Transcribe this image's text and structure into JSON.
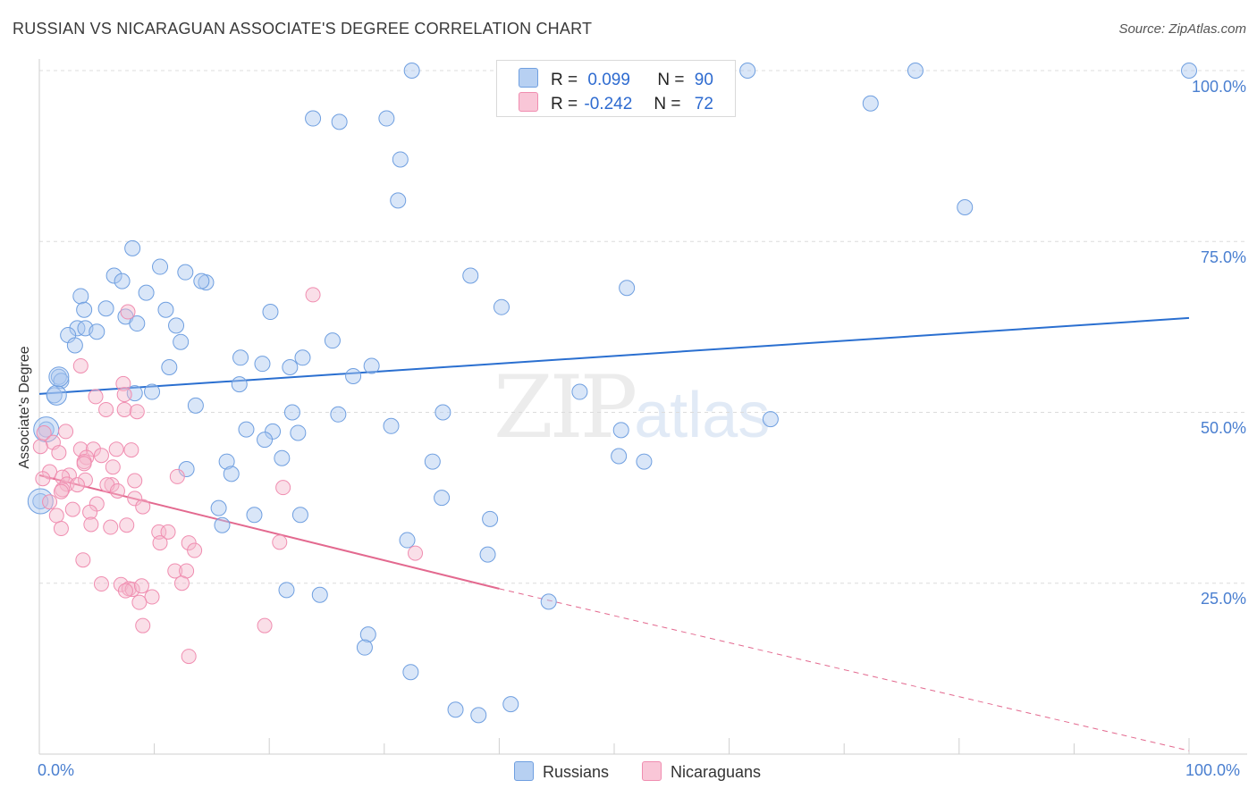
{
  "header": {
    "title": "RUSSIAN VS NICARAGUAN ASSOCIATE'S DEGREE CORRELATION CHART",
    "source": "Source: ZipAtlas.com"
  },
  "legend": {
    "russians": {
      "r_label": "R =",
      "r_value": "0.099",
      "n_label": "N =",
      "n_value": "90"
    },
    "nicaraguans": {
      "r_label": "R =",
      "r_value": "-0.242",
      "n_label": "N =",
      "n_value": "72"
    },
    "bottom": {
      "russians": "Russians",
      "nicaraguans": "Nicaraguans"
    }
  },
  "watermark": {
    "zip": "ZIP",
    "atlas": "atlas"
  },
  "chart_data": {
    "type": "scatter",
    "title": "RUSSIAN VS NICARAGUAN ASSOCIATE'S DEGREE CORRELATION CHART",
    "xlabel": "",
    "ylabel": "Associate's Degree",
    "xlim": [
      0,
      100
    ],
    "ylim": [
      0,
      100
    ],
    "x_tick_labels": [
      "0.0%",
      "100.0%"
    ],
    "y_tick_labels": [
      "100.0%",
      "75.0%",
      "50.0%",
      "25.0%"
    ],
    "y_ticks": [
      100,
      75,
      50,
      25
    ],
    "grid": true,
    "colors": {
      "russians": "#6f9fe0",
      "nicaraguans": "#f08db0",
      "russians_line": "#2a6fd0",
      "nicaraguans_line": "#e3698f"
    },
    "series": [
      {
        "name": "Russians",
        "trend": {
          "x": [
            0,
            100
          ],
          "y": [
            52.7,
            63.8
          ],
          "dashed_to": null
        },
        "points": [
          [
            32.4,
            100
          ],
          [
            61.6,
            100
          ],
          [
            76.2,
            100
          ],
          [
            100,
            100
          ],
          [
            59.3,
            100
          ],
          [
            23.8,
            93
          ],
          [
            26.1,
            92.5
          ],
          [
            30.2,
            93
          ],
          [
            72.3,
            95.2
          ],
          [
            31.4,
            87
          ],
          [
            31.2,
            81
          ],
          [
            80.5,
            80
          ],
          [
            8.1,
            74
          ],
          [
            10.5,
            71.3
          ],
          [
            6.5,
            70
          ],
          [
            7.2,
            69.2
          ],
          [
            12.7,
            70.5
          ],
          [
            14.5,
            69
          ],
          [
            14.1,
            69.2
          ],
          [
            3.6,
            67
          ],
          [
            9.3,
            67.5
          ],
          [
            37.5,
            70
          ],
          [
            51.1,
            68.2
          ],
          [
            5.8,
            65.2
          ],
          [
            3.9,
            65
          ],
          [
            11.0,
            65
          ],
          [
            20.1,
            64.7
          ],
          [
            40.2,
            65.4
          ],
          [
            7.5,
            64
          ],
          [
            8.5,
            63
          ],
          [
            11.9,
            62.7
          ],
          [
            3.3,
            62.3
          ],
          [
            4.0,
            62.3
          ],
          [
            5.0,
            61.8
          ],
          [
            2.5,
            61.3
          ],
          [
            12.3,
            60.3
          ],
          [
            25.5,
            60.5
          ],
          [
            3.1,
            59.8
          ],
          [
            17.5,
            58
          ],
          [
            22.9,
            58
          ],
          [
            19.4,
            57.1
          ],
          [
            11.3,
            56.6
          ],
          [
            21.8,
            56.6
          ],
          [
            28.9,
            56.8
          ],
          [
            1.7,
            55.2
          ],
          [
            1.9,
            54.6
          ],
          [
            17.4,
            54.1
          ],
          [
            27.3,
            55.3
          ],
          [
            1.3,
            52.5
          ],
          [
            9.8,
            53
          ],
          [
            47.0,
            53
          ],
          [
            13.6,
            51
          ],
          [
            8.3,
            52.8
          ],
          [
            35.1,
            50
          ],
          [
            22.0,
            50
          ],
          [
            26.0,
            49.7
          ],
          [
            63.6,
            49
          ],
          [
            30.6,
            48
          ],
          [
            0.6,
            47.5
          ],
          [
            18.0,
            47.5
          ],
          [
            20.3,
            47.2
          ],
          [
            50.6,
            47.4
          ],
          [
            22.5,
            47
          ],
          [
            19.6,
            46
          ],
          [
            21.1,
            43.3
          ],
          [
            16.3,
            42.8
          ],
          [
            34.2,
            42.8
          ],
          [
            50.4,
            43.6
          ],
          [
            52.6,
            42.8
          ],
          [
            12.8,
            41.7
          ],
          [
            16.7,
            41
          ],
          [
            35.0,
            37.5
          ],
          [
            15.6,
            36
          ],
          [
            0.1,
            37
          ],
          [
            18.7,
            35
          ],
          [
            22.7,
            35
          ],
          [
            39.2,
            34.4
          ],
          [
            15.9,
            33.5
          ],
          [
            32.0,
            31.3
          ],
          [
            39.0,
            29.2
          ],
          [
            21.5,
            24
          ],
          [
            24.4,
            23.3
          ],
          [
            44.3,
            22.3
          ],
          [
            28.6,
            17.5
          ],
          [
            28.3,
            15.6
          ],
          [
            32.3,
            12
          ],
          [
            36.2,
            6.5
          ],
          [
            38.2,
            5.7
          ],
          [
            41.0,
            7.3
          ]
        ]
      },
      {
        "name": "Nicaraguans",
        "trend": {
          "x": [
            0,
            40
          ],
          "y": [
            40.8,
            24.2
          ],
          "dashed_to": [
            100,
            0.5
          ]
        },
        "points": [
          [
            23.8,
            67.2
          ],
          [
            7.7,
            64.7
          ],
          [
            3.6,
            56.8
          ],
          [
            7.3,
            54.2
          ],
          [
            4.9,
            52.3
          ],
          [
            7.4,
            52.6
          ],
          [
            5.8,
            50.4
          ],
          [
            7.4,
            50.4
          ],
          [
            8.5,
            50.1
          ],
          [
            2.3,
            47.2
          ],
          [
            0.4,
            47.0
          ],
          [
            1.2,
            45.6
          ],
          [
            0.1,
            45.0
          ],
          [
            3.6,
            44.6
          ],
          [
            4.7,
            44.6
          ],
          [
            6.7,
            44.6
          ],
          [
            8.0,
            44.5
          ],
          [
            1.7,
            44.1
          ],
          [
            4.1,
            43.4
          ],
          [
            3.9,
            42.8
          ],
          [
            5.4,
            43.7
          ],
          [
            3.9,
            42.5
          ],
          [
            6.4,
            42
          ],
          [
            0.9,
            41.3
          ],
          [
            2.6,
            40.8
          ],
          [
            2.0,
            40.5
          ],
          [
            4.0,
            40.1
          ],
          [
            0.3,
            40.3
          ],
          [
            8.3,
            40
          ],
          [
            12.0,
            40.6
          ],
          [
            2.4,
            39.5
          ],
          [
            3.3,
            39.4
          ],
          [
            6.3,
            39.4
          ],
          [
            5.9,
            39.4
          ],
          [
            2.0,
            38.7
          ],
          [
            1.9,
            38.4
          ],
          [
            6.8,
            38.5
          ],
          [
            21.2,
            39
          ],
          [
            8.3,
            37.4
          ],
          [
            5.0,
            36.6
          ],
          [
            0.9,
            36.9
          ],
          [
            2.9,
            35.8
          ],
          [
            9.0,
            36.2
          ],
          [
            4.4,
            35.4
          ],
          [
            1.5,
            34.9
          ],
          [
            7.6,
            33.5
          ],
          [
            4.5,
            33.6
          ],
          [
            6.2,
            33.2
          ],
          [
            1.9,
            33.0
          ],
          [
            10.4,
            32.5
          ],
          [
            11.2,
            32.5
          ],
          [
            10.5,
            30.9
          ],
          [
            13.0,
            30.9
          ],
          [
            20.9,
            31
          ],
          [
            13.5,
            29.8
          ],
          [
            32.7,
            29.4
          ],
          [
            3.8,
            28.4
          ],
          [
            11.8,
            26.8
          ],
          [
            12.8,
            26.8
          ],
          [
            5.4,
            24.9
          ],
          [
            7.1,
            24.8
          ],
          [
            7.8,
            24.2
          ],
          [
            8.1,
            24.1
          ],
          [
            8.9,
            24.6
          ],
          [
            12.4,
            25.0
          ],
          [
            7.5,
            23.9
          ],
          [
            9.8,
            23.0
          ],
          [
            8.7,
            22.2
          ],
          [
            9.0,
            18.8
          ],
          [
            19.6,
            18.8
          ],
          [
            13.0,
            14.3
          ]
        ]
      }
    ]
  }
}
